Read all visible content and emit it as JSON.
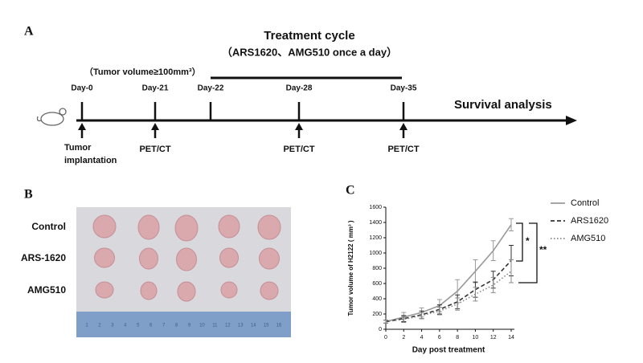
{
  "panel_a": {
    "label": "A",
    "title": "Treatment cycle",
    "subtitle": "（ARS1620、AMG510 once a day）",
    "condition": "（Tumor volume≥100mm³）",
    "days": [
      "Day-0",
      "Day-21",
      "Day-22",
      "Day-28",
      "Day-35"
    ],
    "end_label": "Survival analysis",
    "implantation_label": [
      "Tumor",
      "implantation"
    ],
    "imaging": [
      "PET/CT",
      "PET/CT",
      "PET/CT"
    ]
  },
  "panel_b": {
    "label": "B",
    "rows": [
      "Control",
      "ARS-1620",
      "AMG510"
    ],
    "ruler": [
      1,
      2,
      3,
      4,
      5,
      6,
      7,
      8,
      9,
      10,
      11,
      12,
      13,
      14,
      15,
      16
    ]
  },
  "chart_data": {
    "type": "line",
    "label": "C",
    "x_label": "Day post treatment",
    "y_label": "Tumor volume of H2122 ( mm³ )",
    "x": [
      0,
      2,
      4,
      6,
      8,
      10,
      12,
      14
    ],
    "xlim": [
      0,
      14
    ],
    "xticks": [
      0,
      2,
      4,
      6,
      8,
      10,
      12,
      14
    ],
    "ylim": [
      0,
      1600
    ],
    "yticks": [
      0,
      200,
      400,
      600,
      800,
      1000,
      1200,
      1400,
      1600
    ],
    "series": [
      {
        "name": "Control",
        "color": "#999999",
        "line_style": "solid",
        "values": [
          100,
          160,
          220,
          310,
          500,
          760,
          1030,
          1370
        ],
        "errors": [
          20,
          60,
          60,
          80,
          150,
          150,
          130,
          80
        ]
      },
      {
        "name": "ARS1620",
        "color": "#333333",
        "line_style": "dashed",
        "values": [
          100,
          140,
          190,
          260,
          360,
          520,
          650,
          900
        ],
        "errors": [
          20,
          40,
          50,
          60,
          90,
          100,
          110,
          200
        ]
      },
      {
        "name": "AMG510",
        "color": "#888888",
        "line_style": "dotted",
        "values": [
          100,
          130,
          180,
          240,
          330,
          460,
          580,
          760
        ],
        "errors": [
          20,
          40,
          40,
          50,
          80,
          90,
          100,
          150
        ]
      }
    ],
    "annotations": [
      "*",
      "**"
    ]
  }
}
